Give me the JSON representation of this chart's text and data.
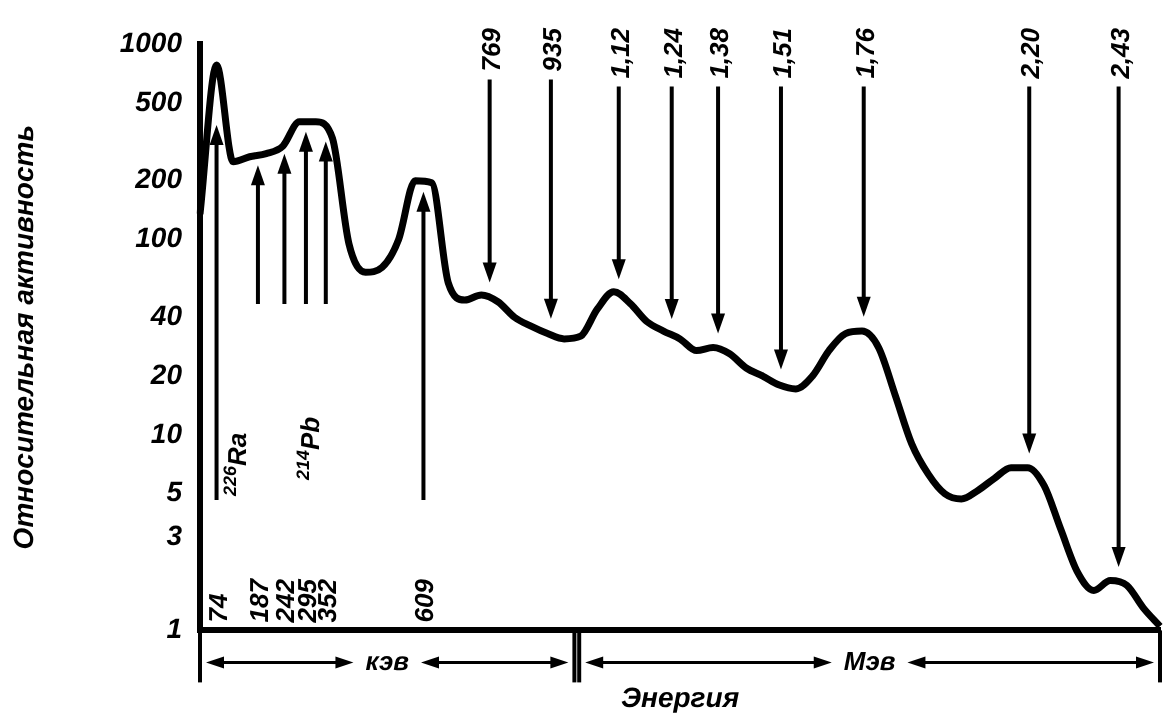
{
  "chart_data": {
    "type": "line",
    "ylabel": "Относительная активность",
    "xlabel": "Энергия",
    "categories": [
      null,
      null,
      null,
      null,
      null,
      null,
      null,
      null,
      null,
      null,
      null,
      null,
      null,
      null,
      null,
      null,
      null,
      null,
      null,
      null,
      null,
      null,
      null,
      null,
      null,
      null,
      null,
      null,
      null,
      null,
      null,
      null,
      null,
      null,
      null,
      null,
      null,
      null,
      null,
      null,
      null,
      null,
      null,
      null,
      null,
      null,
      null,
      null,
      null,
      null,
      null,
      null,
      null,
      null,
      null,
      null,
      null,
      null,
      null
    ],
    "series": [
      {
        "color": "#000000",
        "values": [
          135,
          780,
          250,
          265,
          275,
          300,
          400,
          400,
          330,
          95,
          68,
          72,
          100,
          200,
          195,
          60,
          49,
          52,
          48,
          40,
          36,
          33,
          31,
          32,
          44,
          54,
          47,
          38,
          34,
          31,
          27,
          28,
          26,
          22,
          20,
          18,
          17.2,
          20,
          27,
          33,
          34,
          28,
          16,
          9,
          6.3,
          5,
          4.7,
          5.2,
          6,
          6.8,
          6.8,
          5.5,
          3.3,
          2,
          1.6,
          1.8,
          1.7,
          1.3,
          1.05
        ]
      }
    ],
    "log": "y",
    "ylim": [
      1,
      1000
    ],
    "yticks": [
      1,
      3,
      5,
      10,
      20,
      40,
      100,
      200,
      500,
      1000
    ],
    "marker": "none",
    "line_style": "solid",
    "grid": false,
    "legend": false,
    "annotations": [
      "74",
      "187",
      "242",
      "295",
      "352",
      "609",
      "$^{226}$Ra",
      "$^{214}$Pb",
      "769",
      "935",
      "1,12",
      "1,24",
      "1,38",
      "1,51",
      "1,76",
      "2,20",
      "2,43",
      "кэв",
      "Мэв"
    ]
  }
}
